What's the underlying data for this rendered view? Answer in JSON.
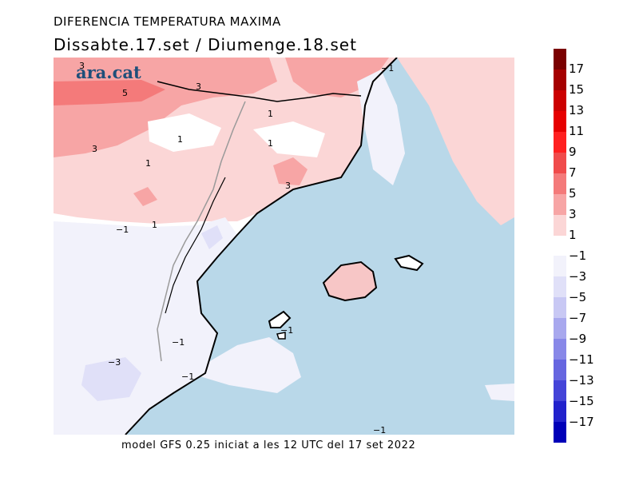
{
  "header": {
    "title": "DIFERENCIA TEMPERATURA MAXIMA",
    "subtitle": "Dissabte.17.set / Diumenge.18.set"
  },
  "footer": {
    "model_info": "model GFS 0.25 iniciat a les 12 UTC del 17 set 2022"
  },
  "logo": {
    "text": "ara.cat",
    "color": "#1f4f7a"
  },
  "legend": {
    "levels": [
      {
        "label": "17",
        "color": "#7a0000"
      },
      {
        "label": "15",
        "color": "#a50000"
      },
      {
        "label": "13",
        "color": "#cc0000"
      },
      {
        "label": "11",
        "color": "#e60000"
      },
      {
        "label": "9",
        "color": "#ff2020"
      },
      {
        "label": "7",
        "color": "#f04b4b"
      },
      {
        "label": "5",
        "color": "#f47a7a"
      },
      {
        "label": "3",
        "color": "#f7a5a5"
      },
      {
        "label": "1",
        "color": "#fbd6d6"
      },
      {
        "label": "−1",
        "color": "#f2f2fb"
      },
      {
        "label": "−3",
        "color": "#e0e0f8"
      },
      {
        "label": "−5",
        "color": "#c8c8f4"
      },
      {
        "label": "−7",
        "color": "#a8a8ee"
      },
      {
        "label": "−9",
        "color": "#8888e8"
      },
      {
        "label": "−11",
        "color": "#6666e0"
      },
      {
        "label": "−13",
        "color": "#4444d8"
      },
      {
        "label": "−15",
        "color": "#2222cc"
      },
      {
        "label": "−17",
        "color": "#0000b8"
      }
    ]
  },
  "map": {
    "sea_color": "#b9d8e9",
    "contour_labels": [
      "3",
      "5",
      "3",
      "1",
      "1",
      "1",
      "3",
      "1",
      "1",
      "3",
      "−1",
      "−1",
      "−1",
      "−1",
      "−3",
      "−1",
      "−1"
    ]
  }
}
